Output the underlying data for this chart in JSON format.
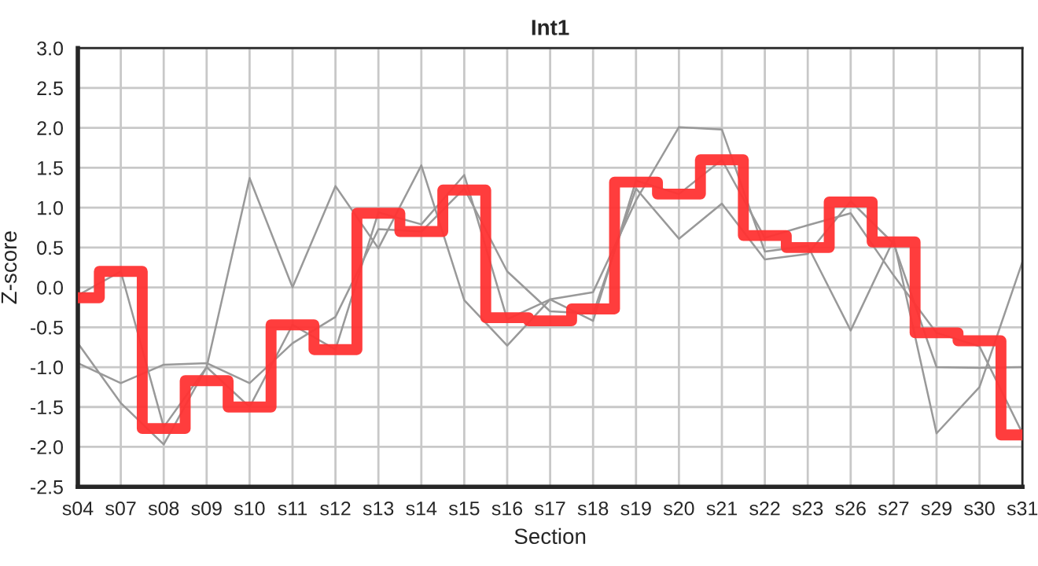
{
  "chart_data": {
    "type": "line",
    "title": "Int1",
    "xlabel": "Section",
    "ylabel": "Z-score",
    "categories": [
      "s04",
      "s07",
      "s08",
      "s09",
      "s10",
      "s11",
      "s12",
      "s13",
      "s14",
      "s15",
      "s16",
      "s17",
      "s18",
      "s19",
      "s20",
      "s21",
      "s22",
      "s23",
      "s26",
      "s27",
      "s29",
      "s30",
      "s31"
    ],
    "series": [
      {
        "color": "#999999",
        "values": [
          -0.1,
          0.2,
          -1.75,
          -1.0,
          1.37,
          0.0,
          1.27,
          0.49,
          1.53,
          -0.16,
          -0.73,
          -0.15,
          -0.06,
          1.09,
          2.01,
          1.98,
          0.45,
          0.52,
          -0.54,
          0.6,
          -1.83,
          -1.25,
          0.32
        ]
      },
      {
        "color": "#999999",
        "values": [
          -0.7,
          -1.45,
          -1.97,
          -1.0,
          -1.5,
          -0.47,
          -0.78,
          0.94,
          0.79,
          1.41,
          -0.4,
          -0.15,
          -0.42,
          1.34,
          1.17,
          1.6,
          0.62,
          0.78,
          0.93,
          0.15,
          -0.57,
          -0.74,
          -1.83
        ]
      },
      {
        "color": "#999999",
        "values": [
          -0.95,
          -1.2,
          -0.97,
          -0.95,
          -1.2,
          -0.7,
          -0.37,
          0.73,
          0.7,
          1.24,
          0.2,
          -0.3,
          -0.33,
          1.24,
          0.61,
          1.05,
          0.35,
          0.42,
          1.08,
          0.55,
          -1.0,
          -1.01,
          -1.0
        ]
      },
      {
        "type": "step",
        "color": "#ff3333",
        "values": [
          -0.13,
          0.2,
          -1.77,
          -1.17,
          -1.5,
          -0.47,
          -0.78,
          0.93,
          0.7,
          1.22,
          -0.38,
          -0.42,
          -0.27,
          1.32,
          1.17,
          1.6,
          0.65,
          0.5,
          1.07,
          0.57,
          -0.57,
          -0.67,
          -1.85
        ]
      }
    ],
    "ylim": [
      -2.5,
      3.0
    ],
    "yticks": [
      {
        "value": -2.5,
        "label": "-2.5"
      },
      {
        "value": -2.0,
        "label": "-2.0"
      },
      {
        "value": -1.5,
        "label": "-1.5"
      },
      {
        "value": -1.0,
        "label": "-1.0"
      },
      {
        "value": -0.5,
        "label": "-0.5"
      },
      {
        "value": 0.0,
        "label": "0.0"
      },
      {
        "value": 0.5,
        "label": "0.5"
      },
      {
        "value": 1.0,
        "label": "1.0"
      },
      {
        "value": 1.5,
        "label": "1.5"
      },
      {
        "value": 2.0,
        "label": "2.0"
      },
      {
        "value": 2.5,
        "label": "2.5"
      },
      {
        "value": 3.0,
        "label": "3.0"
      }
    ],
    "grid": true,
    "marker": "none",
    "line_style": "solid"
  }
}
